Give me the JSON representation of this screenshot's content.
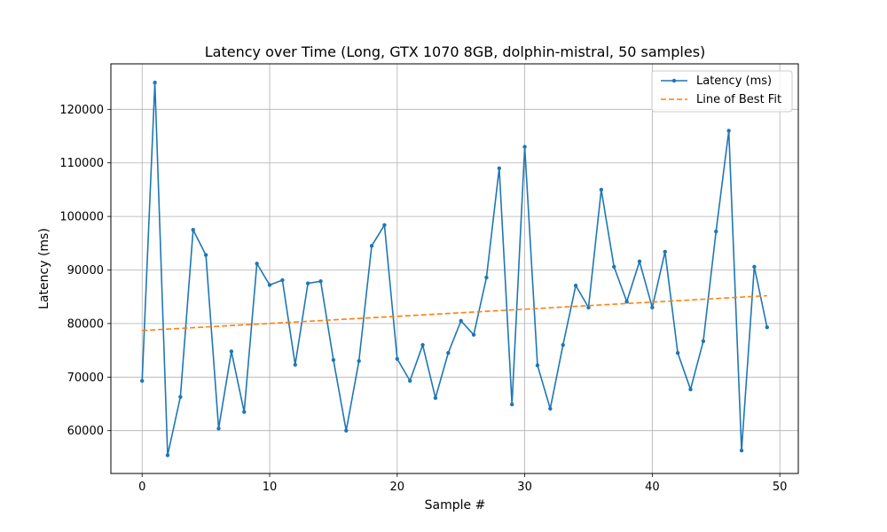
{
  "chart_data": {
    "type": "line",
    "title": "Latency over Time (Long, GTX 1070 8GB, dolphin-mistral, 50 samples)",
    "xlabel": "Sample #",
    "ylabel": "Latency (ms)",
    "xlim": [
      -2.45,
      51.45
    ],
    "ylim": [
      52000,
      128500
    ],
    "xticks": [
      0,
      10,
      20,
      30,
      40,
      50
    ],
    "yticks": [
      60000,
      70000,
      80000,
      90000,
      100000,
      110000,
      120000
    ],
    "grid": true,
    "legend_position": "top-right",
    "series": [
      {
        "name": "Latency (ms)",
        "color": "#1f77b4",
        "style": "solid-with-markers",
        "x": [
          0,
          1,
          2,
          3,
          4,
          5,
          6,
          7,
          8,
          9,
          10,
          11,
          12,
          13,
          14,
          15,
          16,
          17,
          18,
          19,
          20,
          21,
          22,
          23,
          24,
          25,
          26,
          27,
          28,
          29,
          30,
          31,
          32,
          33,
          34,
          35,
          36,
          37,
          38,
          39,
          40,
          41,
          42,
          43,
          44,
          45,
          46,
          47,
          48,
          49
        ],
        "y": [
          69300,
          125000,
          55400,
          66300,
          97500,
          92800,
          60400,
          74800,
          63500,
          91200,
          87200,
          88100,
          72300,
          87500,
          87900,
          73200,
          60000,
          73000,
          94500,
          98400,
          73400,
          69300,
          76000,
          66100,
          74500,
          80500,
          77900,
          88600,
          109000,
          64900,
          113000,
          72200,
          64100,
          76000,
          87100,
          83000,
          105000,
          90600,
          84100,
          91600,
          83000,
          93400,
          74500,
          67700,
          76700,
          97200,
          116000,
          56300,
          90600,
          79300
        ]
      },
      {
        "name": "Line of Best Fit",
        "color": "#ff7f0e",
        "style": "dashed",
        "x": [
          0,
          49
        ],
        "y": [
          78700,
          85200
        ]
      }
    ]
  }
}
